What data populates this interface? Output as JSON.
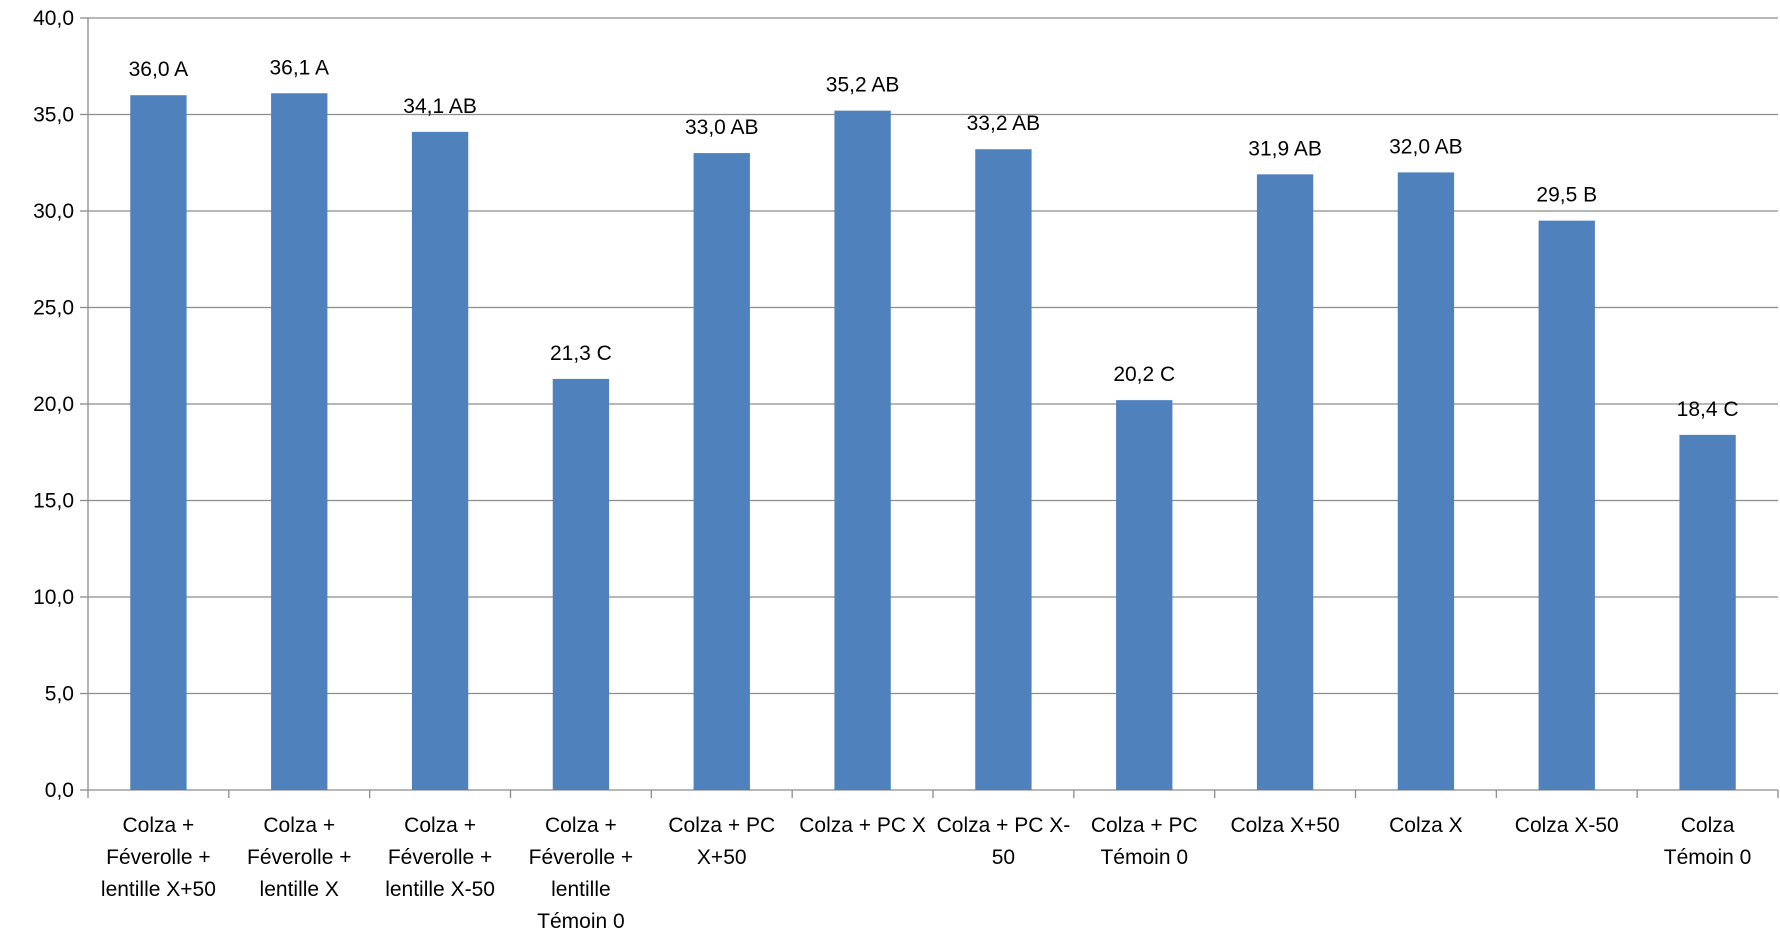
{
  "chart_data": {
    "type": "bar",
    "title": "",
    "xlabel": "",
    "ylabel": "",
    "ylim": [
      0,
      40
    ],
    "yticks": [
      "0,0",
      "5,0",
      "10,0",
      "15,0",
      "20,0",
      "25,0",
      "30,0",
      "35,0",
      "40,0"
    ],
    "grid": true,
    "legend": "none",
    "bar_color": "#4F81BD",
    "categories": [
      [
        "Colza +",
        "Féverolle +",
        "lentille X+50"
      ],
      [
        "Colza +",
        "Féverolle +",
        "lentille X"
      ],
      [
        "Colza +",
        "Féverolle +",
        "lentille X-50"
      ],
      [
        "Colza +",
        "Féverolle +",
        "lentille",
        "Témoin 0"
      ],
      [
        "Colza + PC",
        "X+50"
      ],
      [
        "Colza + PC X"
      ],
      [
        "Colza + PC X-",
        "50"
      ],
      [
        "Colza + PC",
        "Témoin 0"
      ],
      [
        "Colza X+50"
      ],
      [
        "Colza X"
      ],
      [
        "Colza X-50"
      ],
      [
        "Colza",
        "Témoin 0"
      ]
    ],
    "values": [
      36.0,
      36.1,
      34.1,
      21.3,
      33.0,
      35.2,
      33.2,
      20.2,
      31.9,
      32.0,
      29.5,
      18.4
    ],
    "data_labels": [
      "36,0 A",
      "36,1 A",
      "34,1 AB",
      "21,3 C",
      "33,0 AB",
      "35,2 AB",
      "33,2 AB",
      "20,2 C",
      "31,9 AB",
      "32,0 AB",
      "29,5 B",
      "18,4 C"
    ]
  }
}
